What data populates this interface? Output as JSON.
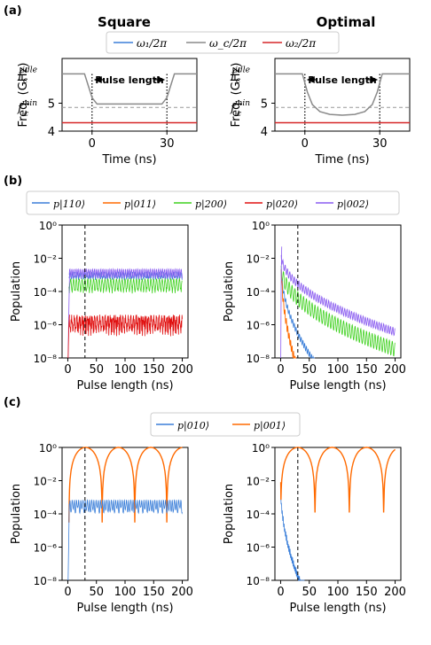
{
  "panels": {
    "a": "(a)",
    "b": "(b)",
    "c": "(c)"
  },
  "colors": {
    "omega1": "#3b7fd9",
    "omegac": "#8a8a8a",
    "omega2": "#d62728",
    "p110": "#3b7fd9",
    "p011": "#ff6a00",
    "p200": "#3fd11f",
    "p020": "#e01010",
    "p002": "#8a5cf0",
    "p010": "#3b7fd9",
    "p001": "#ff6a00"
  },
  "legend_a": [
    "ω₁/2π",
    "ω_c/2π",
    "ω₂/2π"
  ],
  "legend_b": [
    "p|110⟩",
    "p|011⟩",
    "p|200⟩",
    "p|020⟩",
    "p|002⟩"
  ],
  "legend_c": [
    "p|010⟩",
    "p|001⟩"
  ],
  "chart_data": [
    {
      "type": "line",
      "title": "Square",
      "xlabel": "Time (ns)",
      "ylabel": "Freq. (GHz)",
      "ylim": [
        4,
        6.6
      ],
      "yticks": [
        "4",
        "5"
      ],
      "ytick_values": [
        4,
        5
      ],
      "xticks": [
        "0",
        "30"
      ],
      "xtick_values": [
        0,
        30
      ],
      "ylabels_special": {
        "idle": "f_c^idle",
        "min": "f_c^min"
      },
      "annotation": "Pulse length",
      "series": [
        {
          "key": "omega2",
          "x": [
            -12,
            42
          ],
          "y": [
            4.3,
            4.3
          ]
        },
        {
          "key": "omegac",
          "x": [
            -12,
            -3,
            0,
            2,
            28,
            30,
            33,
            42
          ],
          "y": [
            6.05,
            6.05,
            5.2,
            4.97,
            4.97,
            5.2,
            6.05,
            6.05
          ]
        }
      ]
    },
    {
      "type": "line",
      "title": "Optimal",
      "xlabel": "Time (ns)",
      "ylabel": "Freq. (GHz)",
      "ylim": [
        4,
        6.6
      ],
      "yticks": [
        "4",
        "5"
      ],
      "ytick_values": [
        4,
        5
      ],
      "xticks": [
        "0",
        "30"
      ],
      "xtick_values": [
        0,
        30
      ],
      "ylabels_special": {
        "idle": "f_c^idle",
        "min": "f_c^min"
      },
      "annotation": "Pulse length",
      "series": [
        {
          "key": "omega2",
          "x": [
            -12,
            42
          ],
          "y": [
            4.3,
            4.3
          ]
        },
        {
          "key": "omegac",
          "x": [
            -12,
            -1,
            1,
            3,
            6,
            10,
            15,
            20,
            24,
            27,
            29,
            31,
            42
          ],
          "y": [
            6.05,
            6.05,
            5.4,
            4.95,
            4.7,
            4.6,
            4.57,
            4.6,
            4.7,
            4.95,
            5.4,
            6.05,
            6.05
          ]
        }
      ]
    },
    {
      "type": "line",
      "xlabel": "Pulse length (ns)",
      "ylabel": "Population",
      "yscale": "log",
      "ylim": [
        1e-08,
        1
      ],
      "xlim": [
        -10,
        210
      ],
      "yticks": [
        "10⁰",
        "10⁻²",
        "10⁻⁴",
        "10⁻⁶",
        "10⁻⁸"
      ],
      "xticks": [
        "0",
        "50",
        "100",
        "150",
        "200"
      ],
      "series": [
        {
          "key": "p002",
          "x": [
            2,
            30,
            100,
            200
          ],
          "y": [
            0.002,
            0.002,
            0.002,
            0.002
          ]
        },
        {
          "key": "p110",
          "x": [
            2,
            30,
            100,
            200
          ],
          "y": [
            0.0015,
            0.0015,
            0.0015,
            0.0015
          ]
        },
        {
          "key": "p200",
          "x": [
            2,
            30,
            100,
            200
          ],
          "y": [
            0.0005,
            0.0005,
            0.0005,
            0.0005
          ]
        },
        {
          "key": "p020",
          "x": [
            2,
            30,
            100,
            200
          ],
          "y": [
            4e-06,
            4e-06,
            4e-06,
            4e-06
          ]
        }
      ]
    },
    {
      "type": "line",
      "xlabel": "Pulse length (ns)",
      "ylabel": "Population",
      "yscale": "log",
      "ylim": [
        1e-08,
        1
      ],
      "xlim": [
        -10,
        210
      ],
      "yticks": [
        "10⁰",
        "10⁻²",
        "10⁻⁴",
        "10⁻⁶",
        "10⁻⁸"
      ],
      "xticks": [
        "0",
        "50",
        "100",
        "150",
        "200"
      ],
      "series": [
        {
          "key": "p002",
          "x": [
            0,
            10,
            30,
            60,
            100,
            150,
            200
          ],
          "y": [
            0.05,
            0.0005,
            0.0001,
            1e-05,
            1e-06,
            1e-07,
            1e-08
          ]
        },
        {
          "key": "p200",
          "x": [
            0,
            10,
            30,
            60,
            100,
            150,
            200
          ],
          "y": [
            0.01,
            0.0003,
            5e-05,
            5e-06,
            5e-07,
            5e-08,
            1e-08
          ]
        },
        {
          "key": "p011",
          "x": [
            0,
            10,
            20,
            30
          ],
          "y": [
            0.01,
            1e-06,
            1e-07,
            1e-08
          ]
        },
        {
          "key": "p110",
          "x": [
            0,
            10,
            30,
            50
          ],
          "y": [
            0.01,
            5e-06,
            5e-07,
            1e-08
          ]
        }
      ]
    },
    {
      "type": "line",
      "xlabel": "Pulse length (ns)",
      "ylabel": "Population",
      "yscale": "log",
      "ylim": [
        1e-08,
        1
      ],
      "xlim": [
        -10,
        210
      ],
      "yticks": [
        "10⁰",
        "10⁻²",
        "10⁻⁴",
        "10⁻⁶",
        "10⁻⁸"
      ],
      "xticks": [
        "0",
        "50",
        "100",
        "150",
        "200"
      ],
      "series": [
        {
          "key": "p001",
          "x": [
            2,
            30,
            60,
            120,
            180,
            200
          ],
          "y": [
            0.0001,
            1,
            3e-05,
            3e-05,
            3e-05,
            1
          ]
        },
        {
          "key": "p010",
          "x": [
            2,
            30,
            100,
            200
          ],
          "y": [
            0.0004,
            0.0004,
            0.0004,
            0.0004
          ]
        }
      ]
    },
    {
      "type": "line",
      "xlabel": "Pulse length (ns)",
      "ylabel": "Population",
      "yscale": "log",
      "ylim": [
        1e-08,
        1
      ],
      "xlim": [
        -10,
        210
      ],
      "yticks": [
        "10⁰",
        "10⁻²",
        "10⁻⁴",
        "10⁻⁶",
        "10⁻⁸"
      ],
      "xticks": [
        "0",
        "50",
        "100",
        "150",
        "200"
      ],
      "series": [
        {
          "key": "p001",
          "x": [
            0,
            30,
            60,
            120,
            180,
            200
          ],
          "y": [
            0.01,
            1,
            0.0001,
            0.0001,
            0.0001,
            1
          ]
        },
        {
          "key": "p010",
          "x": [
            0,
            10,
            20,
            30,
            40
          ],
          "y": [
            0.01,
            2e-05,
            1e-06,
            1e-07,
            1e-08
          ]
        }
      ]
    }
  ]
}
